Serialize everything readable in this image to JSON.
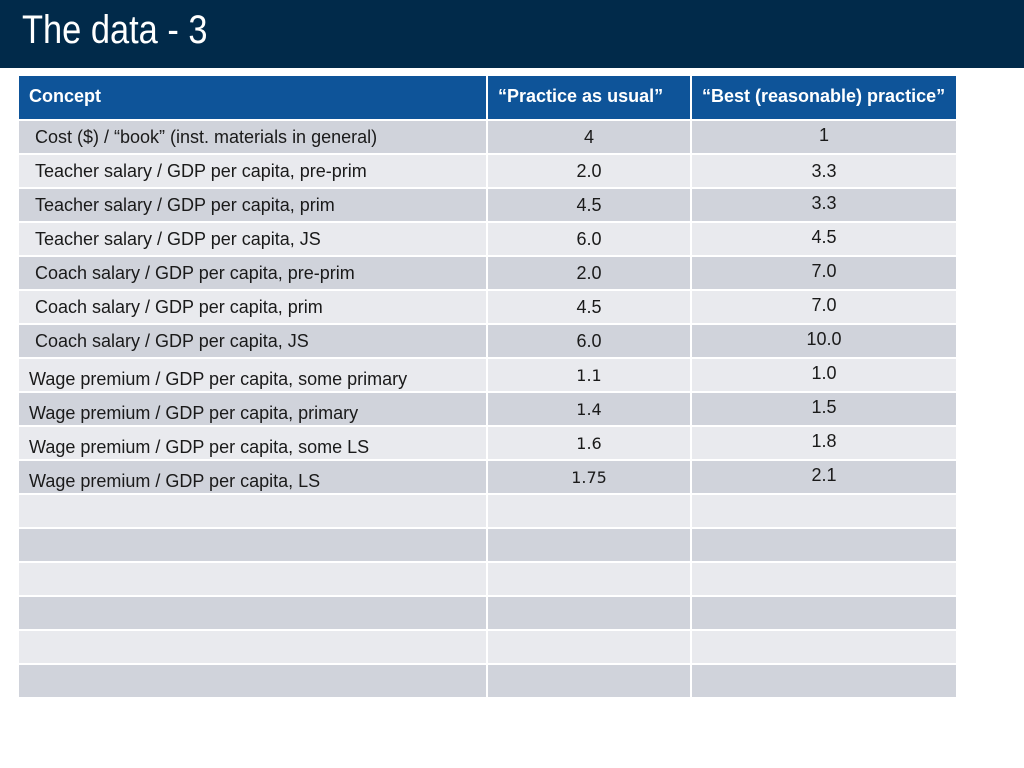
{
  "title": "The data - 3",
  "columns": [
    "Concept",
    "“Practice as usual”",
    "“Best (reasonable) practice”"
  ],
  "rows": [
    {
      "concept": "Cost ($) / “book” (inst. materials in general)",
      "usual": "4",
      "best": "1"
    },
    {
      "concept": "Teacher salary / GDP per capita, pre-prim",
      "usual": "2.0",
      "best": "3.3"
    },
    {
      "concept": "Teacher salary / GDP per capita, prim",
      "usual": "4.5",
      "best": "3.3"
    },
    {
      "concept": "Teacher salary / GDP per capita, JS",
      "usual": "6.0",
      "best": "4.5"
    },
    {
      "concept": "Coach salary / GDP per capita, pre-prim",
      "usual": "2.0",
      "best": "7.0"
    },
    {
      "concept": "Coach salary / GDP per capita, prim",
      "usual": "4.5",
      "best": "7.0"
    },
    {
      "concept": "Coach salary / GDP per capita, JS",
      "usual": "6.0",
      "best": "10.0"
    },
    {
      "concept": "Wage premium / GDP per capita, some primary",
      "usual": "1.1",
      "best": "1.0"
    },
    {
      "concept": "Wage premium / GDP per capita, primary",
      "usual": "1.4",
      "best": "1.5"
    },
    {
      "concept": "Wage premium / GDP per capita, some LS",
      "usual": "1.6",
      "best": "1.8"
    },
    {
      "concept": "Wage premium / GDP per capita, LS",
      "usual": "1.75",
      "best": "2.1"
    }
  ]
}
